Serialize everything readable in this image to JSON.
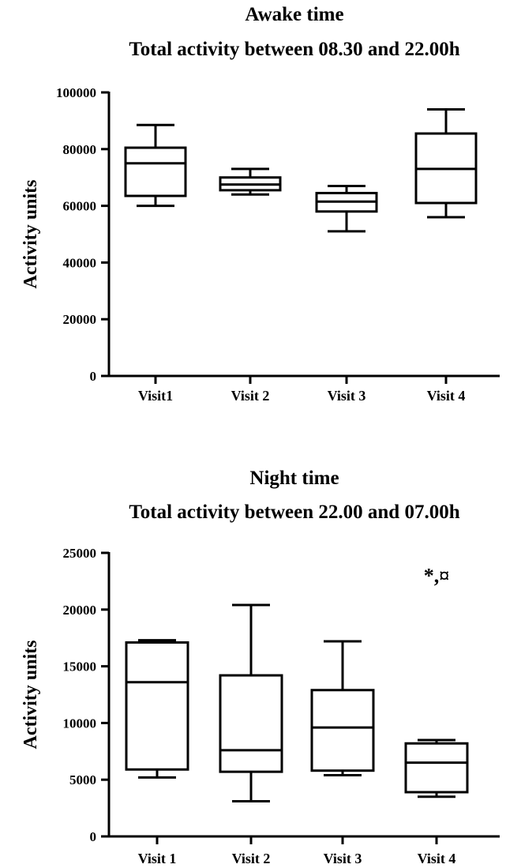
{
  "chart_data": [
    {
      "type": "box",
      "title_lines": [
        "Awake time",
        "Total activity between 08.30 and 22.00h"
      ],
      "xlabel": "",
      "ylabel": "Activity units",
      "ylim": [
        0,
        100000
      ],
      "yticks": [
        0,
        20000,
        40000,
        60000,
        80000,
        100000
      ],
      "ytick_labels": [
        "0",
        "20000",
        "40000",
        "60000",
        "80000",
        "100000"
      ],
      "grid": false,
      "categories": [
        "Visit1",
        "Visit 2",
        "Visit 3",
        "Visit 4"
      ],
      "boxes": [
        {
          "min": 60000,
          "q1": 63500,
          "median": 75000,
          "q3": 80500,
          "max": 88500
        },
        {
          "min": 64000,
          "q1": 65500,
          "median": 67500,
          "q3": 70000,
          "max": 73000
        },
        {
          "min": 51000,
          "q1": 58000,
          "median": 61500,
          "q3": 64500,
          "max": 67000
        },
        {
          "min": 56000,
          "q1": 61000,
          "median": 73000,
          "q3": 85500,
          "max": 94000
        }
      ],
      "annotations": []
    },
    {
      "type": "box",
      "title_lines": [
        "Night time",
        "Total activity between 22.00 and 07.00h"
      ],
      "xlabel": "",
      "ylabel": "Activity units",
      "ylim": [
        0,
        25000
      ],
      "yticks": [
        0,
        5000,
        10000,
        15000,
        20000,
        25000
      ],
      "ytick_labels": [
        "0",
        "5000",
        "10000",
        "15000",
        "20000",
        "25000"
      ],
      "grid": false,
      "categories": [
        "Visit 1",
        "Visit 2",
        "Visit 3",
        "Visit 4"
      ],
      "boxes": [
        {
          "min": 5200,
          "q1": 5900,
          "median": 13600,
          "q3": 17100,
          "max": 17300
        },
        {
          "min": 3100,
          "q1": 5700,
          "median": 7600,
          "q3": 14200,
          "max": 20400
        },
        {
          "min": 5400,
          "q1": 5800,
          "median": 9600,
          "q3": 12900,
          "max": 17200
        },
        {
          "min": 3500,
          "q1": 3900,
          "median": 6500,
          "q3": 8200,
          "max": 8500
        }
      ],
      "annotations": [
        {
          "text": "*,¤",
          "category_index": 3,
          "value": 23000
        }
      ]
    }
  ]
}
